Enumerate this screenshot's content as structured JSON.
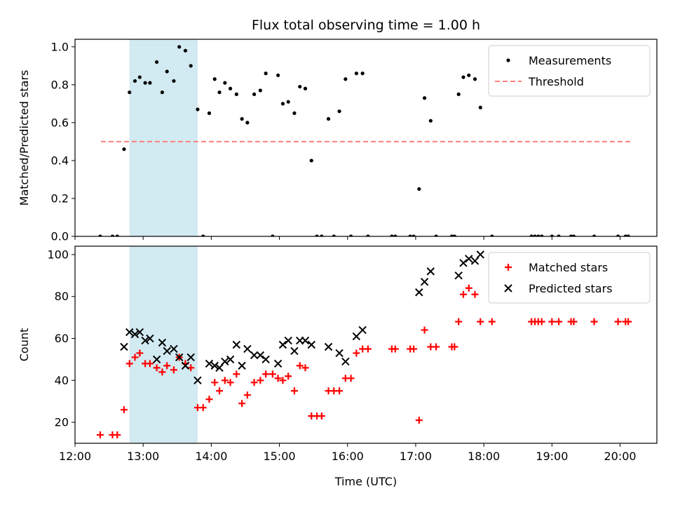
{
  "title": "Flux total observing time = 1.00 h",
  "chart_data": [
    {
      "type": "scatter",
      "title": "Flux total observing time = 1.00 h",
      "xlabel": "",
      "ylabel": "Matched/Predicted stars",
      "xlim": [
        12.0,
        20.54
      ],
      "ylim": [
        0.0,
        1.04
      ],
      "yticks": [
        0.0,
        0.2,
        0.4,
        0.6,
        0.8,
        1.0
      ],
      "ytick_labels": [
        "0.0",
        "0.2",
        "0.4",
        "0.6",
        "0.8",
        "1.0"
      ],
      "legend": "top-right",
      "highlight_span": {
        "x0": 12.8,
        "x1": 13.8,
        "color": "#add8e6"
      },
      "threshold": {
        "name": "Threshold",
        "value": 0.5,
        "x0": 12.38,
        "x1": 20.15,
        "color": "#ff7f7f",
        "style": "dashed"
      },
      "series": [
        {
          "name": "Measurements",
          "marker": "dot",
          "color": "#000000",
          "x": [
            12.37,
            12.55,
            12.62,
            12.72,
            12.8,
            12.88,
            12.95,
            13.03,
            13.1,
            13.2,
            13.28,
            13.35,
            13.45,
            13.53,
            13.62,
            13.7,
            13.8,
            13.88,
            13.97,
            14.05,
            14.12,
            14.2,
            14.28,
            14.37,
            14.45,
            14.53,
            14.63,
            14.72,
            14.8,
            14.9,
            14.98,
            15.05,
            15.13,
            15.22,
            15.3,
            15.38,
            15.47,
            15.55,
            15.62,
            15.72,
            15.8,
            15.88,
            15.97,
            16.05,
            16.13,
            16.22,
            16.3,
            16.65,
            16.7,
            16.92,
            16.97,
            17.05,
            17.13,
            17.22,
            17.3,
            17.53,
            17.57,
            17.63,
            17.7,
            17.78,
            17.87,
            17.95,
            18.12,
            18.7,
            18.75,
            18.8,
            18.85,
            19.0,
            19.1,
            19.28,
            19.32,
            19.62,
            19.97,
            20.08,
            20.12
          ],
          "y": [
            0.0,
            0.0,
            0.0,
            0.46,
            0.76,
            0.82,
            0.84,
            0.81,
            0.81,
            0.92,
            0.76,
            0.87,
            0.82,
            1.0,
            0.98,
            0.9,
            0.67,
            0.0,
            0.65,
            0.83,
            0.76,
            0.81,
            0.78,
            0.75,
            0.62,
            0.6,
            0.75,
            0.77,
            0.86,
            0.0,
            0.85,
            0.7,
            0.71,
            0.65,
            0.79,
            0.78,
            0.4,
            0.0,
            0.0,
            0.62,
            0.0,
            0.66,
            0.83,
            0.0,
            0.86,
            0.86,
            0.0,
            0.0,
            0.0,
            0.0,
            0.0,
            0.25,
            0.73,
            0.61,
            0.0,
            0.0,
            0.0,
            0.75,
            0.84,
            0.85,
            0.83,
            0.68,
            0.0,
            0.0,
            0.0,
            0.0,
            0.0,
            0.0,
            0.0,
            0.0,
            0.0,
            0.0,
            0.0,
            0.0,
            0.0
          ]
        }
      ]
    },
    {
      "type": "scatter",
      "title": "",
      "xlabel": "Time (UTC)",
      "ylabel": "Count",
      "xlim": [
        12.0,
        20.54
      ],
      "ylim": [
        10,
        104
      ],
      "xticks": [
        12,
        13,
        14,
        15,
        16,
        17,
        18,
        19,
        20
      ],
      "xtick_labels": [
        "12:00",
        "13:00",
        "14:00",
        "15:00",
        "16:00",
        "17:00",
        "18:00",
        "19:00",
        "20:00"
      ],
      "yticks": [
        20,
        40,
        60,
        80,
        100
      ],
      "ytick_labels": [
        "20",
        "40",
        "60",
        "80",
        "100"
      ],
      "legend": "top-right",
      "highlight_span": {
        "x0": 12.8,
        "x1": 13.8,
        "color": "#add8e6"
      },
      "series": [
        {
          "name": "Matched stars",
          "marker": "plus",
          "color": "#ff0000",
          "x": [
            12.37,
            12.55,
            12.62,
            12.72,
            12.8,
            12.88,
            12.95,
            13.03,
            13.1,
            13.2,
            13.28,
            13.35,
            13.45,
            13.53,
            13.62,
            13.7,
            13.8,
            13.88,
            13.97,
            14.05,
            14.12,
            14.2,
            14.28,
            14.37,
            14.45,
            14.53,
            14.63,
            14.72,
            14.8,
            14.9,
            14.98,
            15.05,
            15.13,
            15.22,
            15.3,
            15.38,
            15.47,
            15.55,
            15.62,
            15.72,
            15.8,
            15.88,
            15.97,
            16.05,
            16.13,
            16.22,
            16.3,
            16.65,
            16.7,
            16.92,
            16.97,
            17.05,
            17.13,
            17.22,
            17.3,
            17.53,
            17.57,
            17.63,
            17.7,
            17.78,
            17.87,
            17.95,
            18.12,
            18.7,
            18.75,
            18.8,
            18.85,
            19.0,
            19.1,
            19.28,
            19.32,
            19.62,
            19.97,
            20.08,
            20.12
          ],
          "y": [
            14,
            14,
            14,
            26,
            48,
            51,
            53,
            48,
            48,
            46,
            44,
            47,
            45,
            51,
            48,
            46,
            27,
            27,
            31,
            39,
            35,
            40,
            39,
            43,
            29,
            33,
            39,
            40,
            43,
            43,
            41,
            40,
            42,
            35,
            47,
            46,
            23,
            23,
            23,
            35,
            35,
            35,
            41,
            41,
            53,
            55,
            55,
            55,
            55,
            55,
            55,
            21,
            64,
            56,
            56,
            56,
            56,
            68,
            81,
            84,
            81,
            68,
            68,
            68,
            68,
            68,
            68,
            68,
            68,
            68,
            68,
            68,
            68,
            68,
            68
          ]
        },
        {
          "name": "Predicted stars",
          "marker": "x",
          "color": "#000000",
          "x": [
            12.72,
            12.8,
            12.88,
            12.95,
            13.03,
            13.1,
            13.2,
            13.28,
            13.35,
            13.45,
            13.53,
            13.62,
            13.7,
            13.8,
            13.97,
            14.05,
            14.12,
            14.2,
            14.28,
            14.37,
            14.45,
            14.53,
            14.63,
            14.72,
            14.8,
            14.98,
            15.05,
            15.13,
            15.22,
            15.3,
            15.38,
            15.47,
            15.72,
            15.88,
            15.97,
            16.13,
            16.22,
            17.05,
            17.13,
            17.22,
            17.63,
            17.7,
            17.78,
            17.87,
            17.95
          ],
          "y": [
            56,
            63,
            62,
            63,
            59,
            60,
            50,
            58,
            54,
            55,
            51,
            47,
            51,
            40,
            48,
            47,
            46,
            49,
            50,
            57,
            47,
            55,
            52,
            52,
            50,
            48,
            57,
            59,
            54,
            59,
            59,
            57,
            56,
            53,
            49,
            61,
            64,
            82,
            87,
            92,
            90,
            96,
            98,
            97,
            100
          ]
        }
      ]
    }
  ]
}
